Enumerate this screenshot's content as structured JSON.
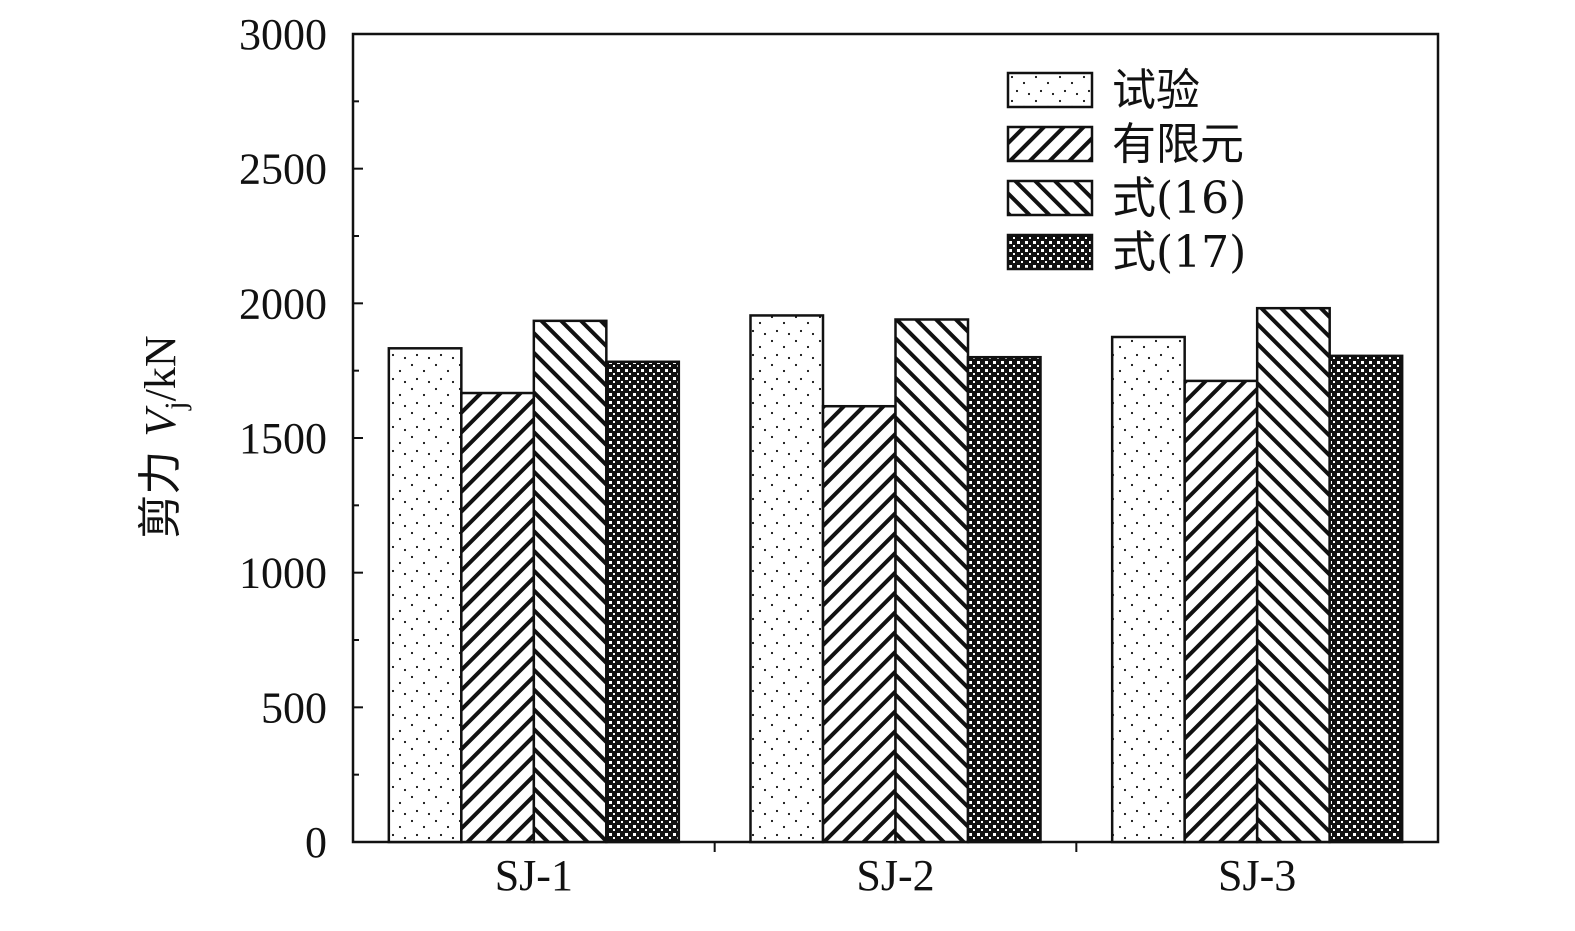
{
  "chart_data": {
    "type": "bar",
    "categories": [
      "SJ-1",
      "SJ-2",
      "SJ-3"
    ],
    "series": [
      {
        "name": "试验",
        "values": [
          1833,
          1955,
          1875
        ],
        "pattern": "dots"
      },
      {
        "name": "有限元",
        "values": [
          1667,
          1618,
          1712
        ],
        "pattern": "hatch-up"
      },
      {
        "name": "式(16)",
        "values": [
          1935,
          1940,
          1982
        ],
        "pattern": "hatch-down"
      },
      {
        "name": "式(17)",
        "values": [
          1783,
          1800,
          1805
        ],
        "pattern": "crosshatch"
      }
    ],
    "ylabel": {
      "prefix": "剪力 ",
      "var": "V",
      "sub": "j",
      "unit": "/kN"
    },
    "ylim": [
      0,
      3000
    ],
    "yticks": [
      0,
      500,
      1000,
      1500,
      2000,
      2500,
      3000
    ],
    "yticks_minor_step": 250,
    "grid": false,
    "legend": "top-right",
    "colors": {
      "stroke": "#111111",
      "fill": "#ffffff"
    }
  }
}
